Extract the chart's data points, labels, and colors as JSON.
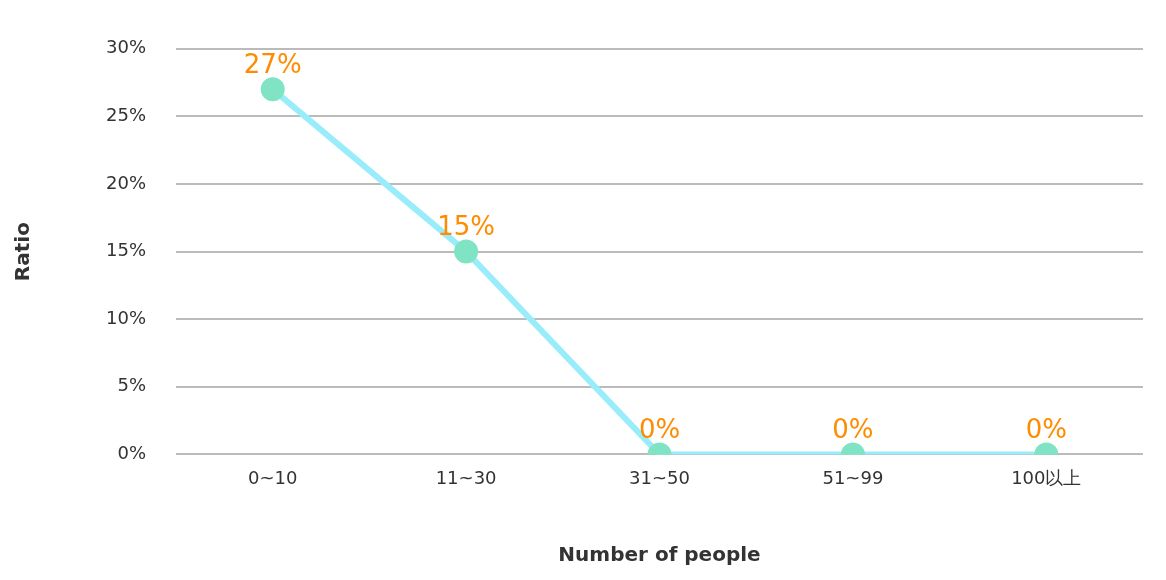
{
  "chart_data": {
    "type": "line",
    "xlabel": "Number of people",
    "ylabel": "Ratio",
    "categories": [
      "0~10",
      "11~30",
      "31~50",
      "51~99",
      "100以上"
    ],
    "series": [
      {
        "color": "#99edfb",
        "values": [
          27,
          15,
          0,
          0,
          0
        ],
        "value_labels": [
          "27%",
          "15%",
          "0%",
          "0%",
          "0%"
        ]
      }
    ],
    "ylim": [
      0,
      30
    ],
    "yticks": [
      {
        "value": 0,
        "label": "0%"
      },
      {
        "value": 5,
        "label": "5%"
      },
      {
        "value": 10,
        "label": "10%"
      },
      {
        "value": 15,
        "label": "15%"
      },
      {
        "value": 20,
        "label": "20%"
      },
      {
        "value": 25,
        "label": "25%"
      },
      {
        "value": 30,
        "label": "30%"
      }
    ],
    "grid": "y",
    "legend": false,
    "marker": "circle",
    "line_style": "solid"
  }
}
